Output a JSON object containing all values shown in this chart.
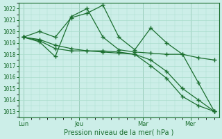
{
  "xlabel": "Pression niveau de la mer( hPa )",
  "bg_color": "#cceee8",
  "grid_color": "#aaddcc",
  "line_color": "#1a6e2e",
  "ylim": [
    1012.5,
    1022.5
  ],
  "yticks": [
    1013,
    1014,
    1015,
    1016,
    1017,
    1018,
    1019,
    1020,
    1021,
    1022
  ],
  "xtick_labels": [
    "Lun",
    "Jeu",
    "Mar",
    "Mer"
  ],
  "xtick_x": [
    0,
    3.5,
    7.5,
    10.5
  ],
  "xlim": [
    -0.3,
    12.3
  ],
  "series": [
    [
      1019.5,
      1020.0,
      1019.5,
      1021.2,
      1021.6,
      1022.3,
      1019.5,
      1018.4,
      1020.3,
      1019.0,
      1018.0,
      1015.5,
      1013.0
    ],
    [
      1019.5,
      1019.3,
      1018.8,
      1018.5,
      1018.3,
      1018.3,
      1018.2,
      1018.0,
      1017.5,
      1016.5,
      1015.0,
      1014.0,
      1013.0
    ],
    [
      1019.5,
      1019.1,
      1017.8,
      1021.3,
      1022.0,
      1019.5,
      1018.4,
      1018.2,
      1018.1,
      1018.0,
      1018.0,
      1017.7,
      1017.5
    ],
    [
      1019.5,
      1019.2,
      1018.5,
      1018.3,
      1018.3,
      1018.2,
      1018.1,
      1018.0,
      1017.0,
      1015.9,
      1014.3,
      1013.5,
      1013.0
    ]
  ],
  "n_points": 13
}
